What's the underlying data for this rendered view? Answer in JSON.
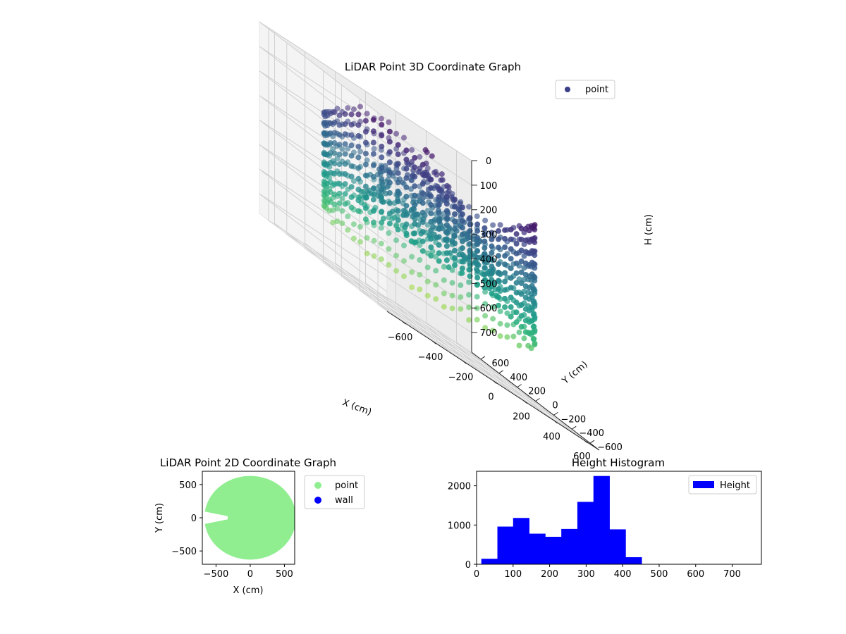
{
  "chart_data": [
    {
      "type": "scatter",
      "title": "LiDAR Point 3D Coordinate Graph",
      "xlabel": "X (cm)",
      "ylabel": "Y (cm)",
      "zlabel": "H (cm)",
      "xlim": [
        -700,
        700
      ],
      "ylim": [
        -700,
        700
      ],
      "zlim": [
        780,
        0
      ],
      "x_ticks": [
        -600,
        -400,
        -200,
        0,
        200,
        400,
        600
      ],
      "y_ticks": [
        -600,
        -400,
        -200,
        0,
        200,
        400,
        600
      ],
      "z_ticks": [
        0,
        100,
        200,
        300,
        400,
        500,
        600,
        700
      ],
      "legend": [
        "point"
      ],
      "legend_position": "top-right",
      "colormap": "viridis",
      "legend_color": "#3b3f86",
      "grid": true
    },
    {
      "type": "scatter",
      "title": "LiDAR Point 2D Coordinate Graph",
      "xlabel": "X (cm)",
      "ylabel": "Y (cm)",
      "xlim": [
        -700,
        650
      ],
      "ylim": [
        -700,
        700
      ],
      "x_ticks": [
        -500,
        0,
        500
      ],
      "y_ticks": [
        500,
        0,
        -500
      ],
      "series": [
        {
          "name": "point",
          "color": "#90ee90"
        },
        {
          "name": "wall",
          "color": "#0000ff"
        }
      ],
      "legend_position": "outside-right"
    },
    {
      "type": "bar",
      "title": "Height Histogram",
      "legend": [
        "Height"
      ],
      "legend_position": "top-right",
      "color": "#0000ff",
      "xlim": [
        0,
        780
      ],
      "ylim": [
        0,
        2370
      ],
      "x_ticks": [
        0,
        100,
        200,
        300,
        400,
        500,
        600,
        700
      ],
      "y_ticks": [
        0,
        1000,
        2000
      ],
      "bin_edges": [
        13,
        57,
        100,
        144,
        188,
        232,
        276,
        320,
        364,
        408,
        452
      ],
      "values": [
        140,
        960,
        1180,
        780,
        700,
        900,
        1590,
        2250,
        890,
        180
      ]
    }
  ]
}
